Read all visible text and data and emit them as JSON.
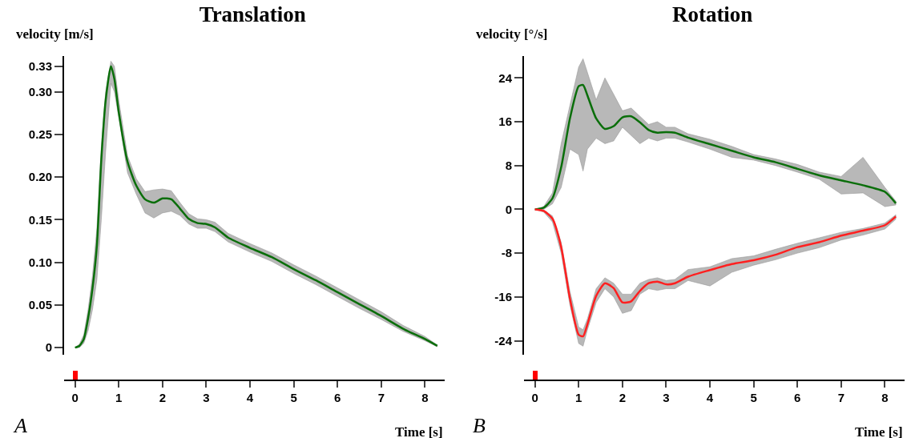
{
  "chart_data": [
    {
      "type": "line",
      "title": "Translation",
      "ylabel": "velocity [m/s]",
      "xlabel": "Time [s]",
      "annotations": [
        "A"
      ],
      "grid": false,
      "xlim": [
        -0.25,
        8.45
      ],
      "xticks": [
        0,
        1,
        2,
        3,
        4,
        5,
        6,
        7,
        8
      ],
      "ylim": [
        -0.008,
        0.342
      ],
      "yticks": [
        0,
        0.05,
        {
          "value": 0.1,
          "label": "0.10"
        },
        0.15,
        {
          "value": 0.2,
          "label": "0.20"
        },
        0.25,
        {
          "value": 0.3,
          "label": "0.30"
        },
        0.33
      ],
      "x": [
        0,
        0.1,
        0.2,
        0.3,
        0.4,
        0.5,
        0.6,
        0.7,
        0.82,
        0.9,
        1.0,
        1.2,
        1.4,
        1.6,
        1.8,
        2.0,
        2.2,
        2.4,
        2.6,
        2.8,
        3.0,
        3.2,
        3.5,
        4,
        4.5,
        5,
        5.5,
        6,
        6.5,
        7,
        7.5,
        8,
        8.28
      ],
      "series": [
        {
          "color": "#0a6e0a",
          "values": [
            0,
            0.002,
            0.01,
            0.035,
            0.07,
            0.12,
            0.22,
            0.29,
            0.33,
            0.315,
            0.276,
            0.218,
            0.19,
            0.174,
            0.17,
            0.175,
            0.174,
            0.163,
            0.151,
            0.146,
            0.145,
            0.141,
            0.129,
            0.117,
            0.106,
            0.092,
            0.079,
            0.065,
            0.051,
            0.037,
            0.022,
            0.01,
            0.002
          ],
          "upper": [
            0,
            0.004,
            0.015,
            0.045,
            0.085,
            0.14,
            0.235,
            0.3,
            0.336,
            0.33,
            0.29,
            0.225,
            0.198,
            0.183,
            0.185,
            0.186,
            0.184,
            0.17,
            0.157,
            0.151,
            0.15,
            0.147,
            0.134,
            0.122,
            0.111,
            0.097,
            0.084,
            0.07,
            0.056,
            0.042,
            0.026,
            0.013,
            0.003
          ],
          "lower": [
            0,
            0,
            0.005,
            0.02,
            0.045,
            0.08,
            0.15,
            0.23,
            0.31,
            0.3,
            0.27,
            0.205,
            0.18,
            0.158,
            0.152,
            0.158,
            0.16,
            0.155,
            0.145,
            0.14,
            0.14,
            0.136,
            0.124,
            0.112,
            0.101,
            0.087,
            0.074,
            0.06,
            0.046,
            0.033,
            0.019,
            0.008,
            0.001
          ]
        }
      ]
    },
    {
      "type": "line",
      "title": "Rotation",
      "ylabel": "velocity [°/s]",
      "xlabel": "Time [s]",
      "annotations": [
        "B"
      ],
      "grid": false,
      "xlim": [
        -0.25,
        8.45
      ],
      "xticks": [
        0,
        1,
        2,
        3,
        4,
        5,
        6,
        7,
        8
      ],
      "ylim": [
        -26.5,
        28
      ],
      "yticks": [
        -24,
        -16,
        -8,
        0,
        8,
        16,
        24
      ],
      "x": [
        0,
        0.2,
        0.4,
        0.6,
        0.8,
        1.0,
        1.1,
        1.2,
        1.4,
        1.6,
        1.8,
        2.0,
        2.2,
        2.4,
        2.6,
        2.8,
        3.0,
        3.2,
        3.5,
        4,
        4.5,
        5,
        5.5,
        6,
        6.5,
        7,
        7.5,
        8,
        8.25
      ],
      "series": [
        {
          "color": "#0a6e0a",
          "values": [
            0,
            0.3,
            2,
            7.7,
            16.6,
            22.5,
            22.7,
            20.8,
            16.6,
            14.7,
            15.2,
            16.8,
            17,
            15.9,
            14.5,
            14,
            14.1,
            14,
            13.1,
            11.9,
            10.7,
            9.5,
            8.6,
            7.4,
            6.2,
            5.3,
            4.4,
            3.2,
            1.1
          ],
          "upper": [
            0,
            0.5,
            3,
            12,
            19,
            26,
            27.5,
            25,
            20,
            24,
            21,
            18,
            18.5,
            17,
            15.5,
            16,
            15,
            15,
            13.8,
            12.8,
            11.5,
            10,
            9.2,
            8.2,
            6.8,
            6,
            9.5,
            4,
            1.5
          ],
          "lower": [
            0,
            0,
            1,
            4,
            11,
            10,
            7,
            11,
            13,
            12,
            12.5,
            15,
            13.5,
            12,
            13,
            12.5,
            13,
            13,
            12.3,
            11,
            9.5,
            9,
            8,
            6.8,
            5.5,
            2.8,
            3,
            0.5,
            0.8
          ]
        },
        {
          "color": "#ff2020",
          "values": [
            0,
            -0.3,
            -1.7,
            -6.9,
            -16.3,
            -22.9,
            -23.2,
            -21,
            -15.8,
            -13.5,
            -14.4,
            -17,
            -16.8,
            -14.9,
            -13.5,
            -13.2,
            -13.7,
            -13.5,
            -12.3,
            -11.1,
            -10,
            -9.3,
            -8.3,
            -6.9,
            -6,
            -4.8,
            -3.9,
            -2.9,
            -1.3
          ],
          "upper": [
            0,
            -0.1,
            -1.2,
            -6,
            -15,
            -21.5,
            -22,
            -20,
            -14.5,
            -12.5,
            -13.5,
            -15.5,
            -15.5,
            -13.5,
            -12.8,
            -12.5,
            -13,
            -12.8,
            -11,
            -10.5,
            -9,
            -8.5,
            -7.3,
            -6.2,
            -5.2,
            -4.2,
            -3.5,
            -2.5,
            -1
          ],
          "lower": [
            0,
            -0.5,
            -2.3,
            -8,
            -17.5,
            -24.5,
            -25,
            -22,
            -17,
            -14.5,
            -16,
            -19,
            -18.5,
            -15.5,
            -14.5,
            -14.8,
            -14.5,
            -14.5,
            -13,
            -14,
            -11.5,
            -10.2,
            -9.2,
            -8,
            -7,
            -5.6,
            -4.7,
            -3.6,
            -1.8
          ]
        }
      ]
    }
  ]
}
